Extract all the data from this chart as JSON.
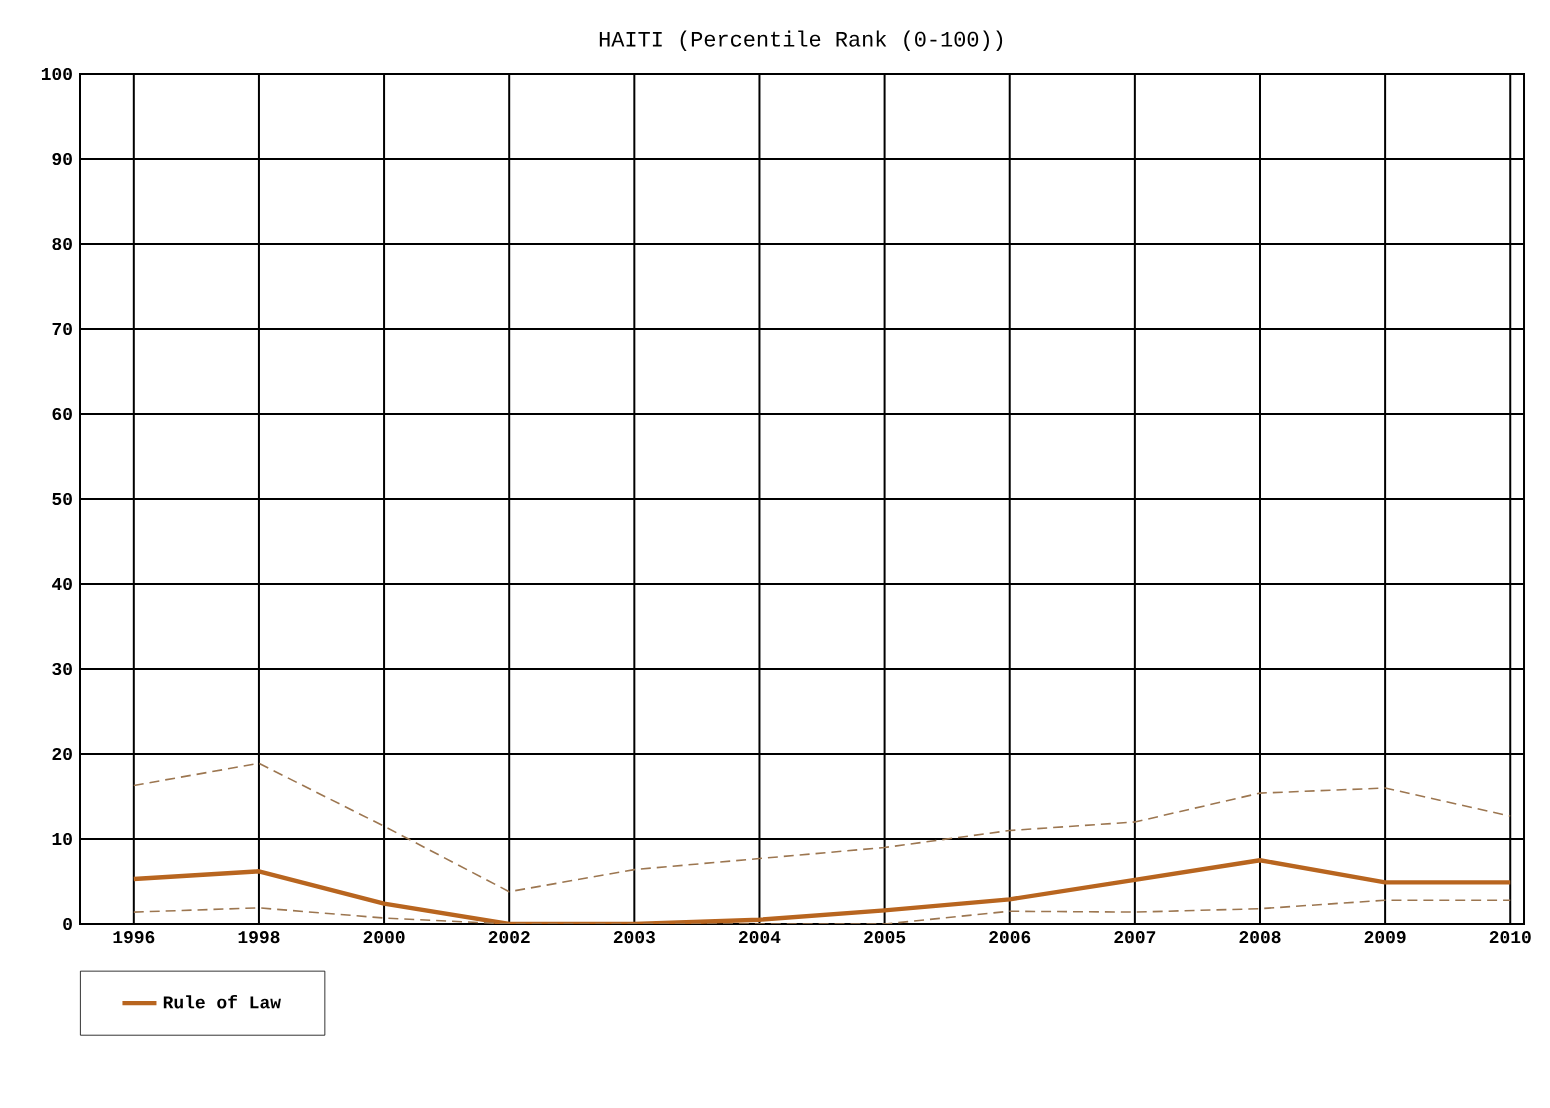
{
  "chart_data": {
    "type": "line",
    "title": "HAITI (Percentile Rank (0-100))",
    "categories": [
      "1996",
      "1998",
      "2000",
      "2002",
      "2003",
      "2004",
      "2005",
      "2006",
      "2007",
      "2008",
      "2009",
      "2010"
    ],
    "series": [
      {
        "name": "Rule of Law",
        "color": "#b8651f",
        "line_style": "solid",
        "values": [
          5.3,
          6.2,
          2.4,
          0,
          0,
          0.5,
          1.6,
          2.9,
          5.2,
          7.5,
          4.9,
          4.9
        ]
      },
      {
        "color": "#9c7650",
        "line_style": "dashed",
        "values": [
          16.3,
          18.9,
          11.5,
          3.8,
          6.4,
          7.7,
          9.0,
          11.0,
          12.0,
          15.4,
          16.0,
          12.7
        ]
      },
      {
        "color": "#9c7650",
        "line_style": "dashed",
        "values": [
          1.4,
          1.9,
          0.7,
          0,
          0,
          0,
          0,
          1.5,
          1.4,
          1.8,
          2.8,
          2.8
        ]
      }
    ],
    "ylim": [
      0,
      100
    ],
    "yticks": [
      0,
      10,
      20,
      30,
      40,
      50,
      60,
      70,
      80,
      90,
      100
    ],
    "grid": true,
    "legend": "bottom",
    "marker": "none"
  }
}
